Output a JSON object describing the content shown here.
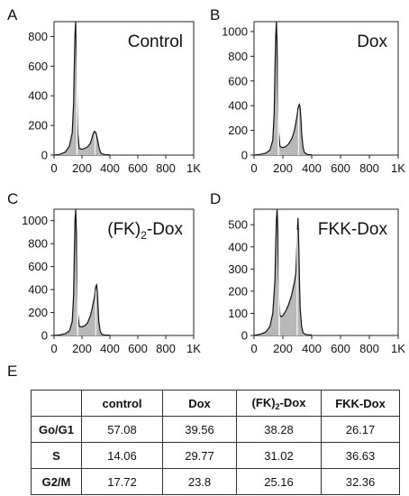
{
  "chart_data": [
    {
      "type": "area",
      "panel_label": "A",
      "title": "Control",
      "x_ticks": [
        "0",
        "200",
        "400",
        "600",
        "800",
        "1K"
      ],
      "y_ticks": [
        "0",
        "200",
        "400",
        "600",
        "800"
      ],
      "xlim": [
        0,
        1000
      ],
      "ylim": [
        0,
        900
      ],
      "g1_peak": {
        "x": 155,
        "y": 900
      },
      "g2_peak": {
        "x": 300,
        "y": 160
      },
      "series": [
        {
          "x": [
            0,
            40,
            80,
            110,
            130,
            140,
            145,
            150,
            155,
            160,
            165,
            170,
            180,
            200,
            220,
            240,
            260,
            270,
            280,
            290,
            300,
            310,
            320,
            330,
            340,
            360,
            400
          ],
          "values": [
            0,
            5,
            20,
            60,
            150,
            350,
            600,
            820,
            900,
            700,
            400,
            150,
            45,
            40,
            45,
            55,
            80,
            110,
            145,
            160,
            150,
            110,
            60,
            25,
            10,
            4,
            2
          ]
        }
      ]
    },
    {
      "type": "area",
      "panel_label": "B",
      "title": "Dox",
      "x_ticks": [
        "0",
        "200",
        "400",
        "600",
        "800",
        "1K"
      ],
      "y_ticks": [
        "0",
        "200",
        "400",
        "600",
        "800",
        "1000"
      ],
      "xlim": [
        0,
        1000
      ],
      "ylim": [
        0,
        1080
      ],
      "g1_peak": {
        "x": 160,
        "y": 1080
      },
      "g2_peak": {
        "x": 315,
        "y": 410
      },
      "series": [
        {
          "x": [
            0,
            40,
            80,
            110,
            130,
            140,
            145,
            150,
            155,
            160,
            165,
            170,
            180,
            200,
            220,
            240,
            260,
            270,
            280,
            290,
            300,
            305,
            310,
            315,
            320,
            325,
            330,
            340,
            350,
            370,
            400
          ],
          "values": [
            0,
            5,
            15,
            40,
            120,
            350,
            700,
            950,
            1080,
            900,
            500,
            200,
            70,
            60,
            70,
            90,
            130,
            160,
            200,
            260,
            330,
            380,
            400,
            410,
            380,
            300,
            180,
            60,
            20,
            5,
            2
          ]
        }
      ]
    },
    {
      "type": "area",
      "panel_label": "C",
      "title": "(FK)",
      "title_sub": "2",
      "title_rest": "-Dox",
      "x_ticks": [
        "0",
        "200",
        "400",
        "600",
        "800",
        "1K"
      ],
      "y_ticks": [
        "0",
        "200",
        "400",
        "600",
        "800",
        "1000"
      ],
      "xlim": [
        0,
        1000
      ],
      "ylim": [
        0,
        1100
      ],
      "g1_peak": {
        "x": 160,
        "y": 1100
      },
      "g2_peak": {
        "x": 305,
        "y": 440
      },
      "series": [
        {
          "x": [
            0,
            40,
            80,
            110,
            130,
            140,
            145,
            150,
            155,
            160,
            165,
            170,
            180,
            200,
            220,
            240,
            260,
            270,
            280,
            290,
            295,
            300,
            305,
            310,
            315,
            320,
            330,
            340,
            360,
            400
          ],
          "values": [
            0,
            5,
            15,
            40,
            120,
            350,
            700,
            1000,
            1100,
            900,
            500,
            200,
            80,
            75,
            85,
            110,
            170,
            220,
            280,
            340,
            400,
            430,
            440,
            380,
            250,
            130,
            40,
            12,
            4,
            2
          ]
        }
      ]
    },
    {
      "type": "area",
      "panel_label": "D",
      "title": "FKK-Dox",
      "x_ticks": [
        "0",
        "200",
        "400",
        "600",
        "800",
        "1K"
      ],
      "y_ticks": [
        "0",
        "100",
        "200",
        "300",
        "400",
        "500"
      ],
      "xlim": [
        0,
        1000
      ],
      "ylim": [
        0,
        570
      ],
      "g1_peak": {
        "x": 165,
        "y": 570
      },
      "g2_peak": {
        "x": 305,
        "y": 530
      },
      "series": [
        {
          "x": [
            0,
            40,
            80,
            110,
            130,
            145,
            150,
            155,
            160,
            165,
            170,
            175,
            180,
            190,
            200,
            220,
            240,
            260,
            270,
            280,
            290,
            295,
            300,
            305,
            310,
            315,
            320,
            330,
            340,
            360,
            400
          ],
          "values": [
            0,
            5,
            15,
            40,
            100,
            250,
            400,
            520,
            570,
            480,
            300,
            150,
            90,
            85,
            90,
            110,
            140,
            180,
            210,
            240,
            280,
            360,
            460,
            530,
            420,
            250,
            120,
            40,
            12,
            4,
            2
          ]
        }
      ]
    }
  ],
  "table": {
    "panel_label": "E",
    "headers": [
      "",
      "control",
      "Dox",
      "(FK)",
      "FKK-Dox"
    ],
    "header_sub": "2",
    "header_rest": "-Dox",
    "rows": [
      {
        "label": "Go/G1",
        "values": [
          "57.08",
          "39.56",
          "38.28",
          "26.17"
        ]
      },
      {
        "label": "S",
        "values": [
          "14.06",
          "29.77",
          "31.02",
          "36.63"
        ]
      },
      {
        "label": "G2/M",
        "values": [
          "17.72",
          "23.8",
          "25.16",
          "32.36"
        ]
      }
    ]
  }
}
